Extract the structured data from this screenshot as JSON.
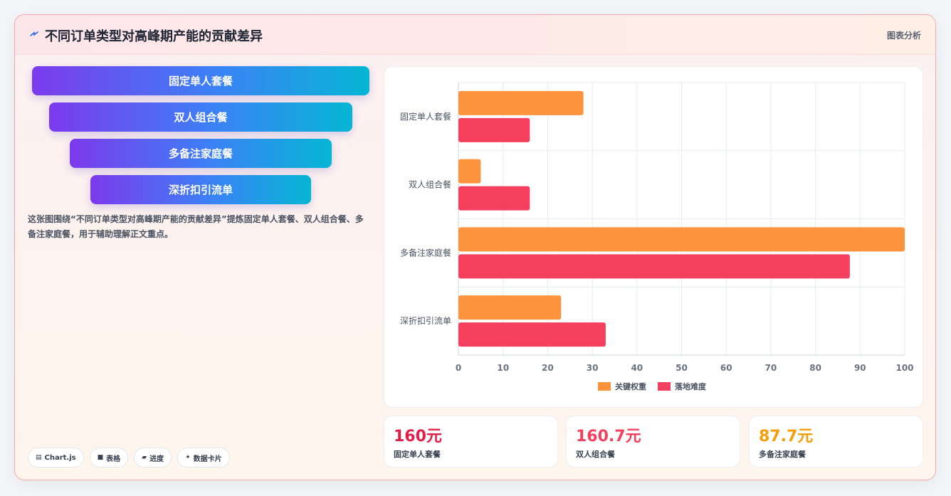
{
  "header": {
    "title": "不同订单类型对高峰期产能的贡献差异",
    "tag": "图表分析",
    "icon": "lightning-icon"
  },
  "funnel": [
    {
      "label": "固定单人套餐"
    },
    {
      "label": "双人组合餐"
    },
    {
      "label": "多备注家庭餐"
    },
    {
      "label": "深折扣引流单"
    }
  ],
  "description": "这张图围绕“不同订单类型对高峰期产能的贡献差异”提炼固定单人套餐、双人组合餐、多备注家庭餐，用于辅助理解正文重点。",
  "chips": [
    {
      "icon": "chart-icon",
      "label": "Chart.js"
    },
    {
      "icon": "table-icon",
      "label": "表格"
    },
    {
      "icon": "progress-icon",
      "label": "进度"
    },
    {
      "icon": "sparkle-icon",
      "label": "数据卡片"
    }
  ],
  "chart_data": {
    "type": "bar",
    "orientation": "horizontal",
    "categories": [
      "固定单人套餐",
      "双人组合餐",
      "多备注家庭餐",
      "深折扣引流单"
    ],
    "series": [
      {
        "name": "关键权重",
        "values": [
          28,
          5,
          100,
          23
        ],
        "color": "#fb923c"
      },
      {
        "name": "落地难度",
        "values": [
          16,
          16,
          87.7,
          33
        ],
        "color": "#f43f5e"
      }
    ],
    "xlim": [
      0,
      100
    ],
    "xticks": [
      0,
      10,
      20,
      30,
      40,
      50,
      60,
      70,
      80,
      90,
      100
    ],
    "grid": true,
    "legend": "bottom"
  },
  "kpis": [
    {
      "value": "160元",
      "label": "固定单人套餐",
      "color": "#e11d48"
    },
    {
      "value": "160.7元",
      "label": "双人组合餐",
      "color": "#f43f5e"
    },
    {
      "value": "87.7元",
      "label": "多备注家庭餐",
      "color": "#f59e0b"
    }
  ]
}
